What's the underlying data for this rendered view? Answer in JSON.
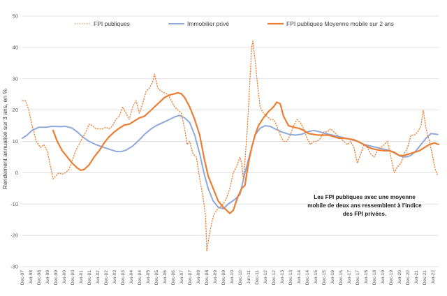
{
  "chart_data": {
    "type": "line",
    "ylabel": "Rendement annualisé sur 3 ans, en %",
    "ylim": [
      -30,
      50
    ],
    "yticks": [
      -30,
      -20,
      -10,
      0,
      10,
      20,
      30,
      40,
      50
    ],
    "grid": true,
    "legend_position": "top",
    "x_range": [
      1997.92,
      2022.75
    ],
    "xtick_labels": [
      "Dec-97",
      "Jun-98",
      "Dec-98",
      "Jun-99",
      "Dec-99",
      "Jun-00",
      "Dec-00",
      "Jun-01",
      "Dec-01",
      "Jun-02",
      "Dec-02",
      "Jun-03",
      "Dec-03",
      "Jun-04",
      "Dec-04",
      "Jun-05",
      "Dec-05",
      "Jun-06",
      "Dec-06",
      "Jun-07",
      "Dec-07",
      "Jun-08",
      "Dec-08",
      "Jun-09",
      "Dec-09",
      "Jun-10",
      "Dec-10",
      "Jun-11",
      "Dec-11",
      "Jun-12",
      "Dec-12",
      "Jun-13",
      "Dec-13",
      "Jun-14",
      "Dec-14",
      "Jun-15",
      "Dec-15",
      "Jun-16",
      "Dec-16",
      "Jun-17",
      "Dec-17",
      "Jun-18",
      "Dec-18",
      "Jun-19",
      "Dec-19",
      "Jun-20",
      "Dec-20",
      "Jun-21",
      "Dec-21",
      "Jun-22"
    ],
    "annotation": [
      "Les FPI publiques avec une moyenne",
      "mobile de deux ans ressemblent à l'indice",
      "des FPI privées."
    ],
    "series": [
      {
        "name": "FPI publiques",
        "color": "#ED7D31",
        "style": "dotted",
        "points": [
          [
            1997.92,
            23
          ],
          [
            1998.1,
            23
          ],
          [
            1998.3,
            20
          ],
          [
            1998.5,
            15
          ],
          [
            1998.75,
            10
          ],
          [
            1999.0,
            8
          ],
          [
            1999.2,
            9
          ],
          [
            1999.4,
            7
          ],
          [
            1999.6,
            2
          ],
          [
            1999.75,
            -2
          ],
          [
            1999.92,
            -1
          ],
          [
            2000.1,
            0
          ],
          [
            2000.3,
            -0.5
          ],
          [
            2000.5,
            0
          ],
          [
            2000.7,
            1
          ],
          [
            2000.9,
            4
          ],
          [
            2001.1,
            7
          ],
          [
            2001.3,
            9
          ],
          [
            2001.5,
            11
          ],
          [
            2001.7,
            13
          ],
          [
            2001.9,
            15.5
          ],
          [
            2002.1,
            15
          ],
          [
            2002.3,
            14
          ],
          [
            2002.5,
            14
          ],
          [
            2002.7,
            14
          ],
          [
            2002.9,
            14.5
          ],
          [
            2003.1,
            14
          ],
          [
            2003.3,
            15
          ],
          [
            2003.5,
            17
          ],
          [
            2003.7,
            18
          ],
          [
            2003.9,
            21
          ],
          [
            2004.1,
            19
          ],
          [
            2004.3,
            17
          ],
          [
            2004.5,
            21
          ],
          [
            2004.7,
            23
          ],
          [
            2004.9,
            19
          ],
          [
            2005.1,
            22
          ],
          [
            2005.3,
            26
          ],
          [
            2005.5,
            27
          ],
          [
            2005.7,
            29
          ],
          [
            2005.8,
            31.5
          ],
          [
            2006.0,
            27
          ],
          [
            2006.2,
            26
          ],
          [
            2006.4,
            25.5
          ],
          [
            2006.6,
            25
          ],
          [
            2006.8,
            23
          ],
          [
            2007.0,
            21
          ],
          [
            2007.2,
            20
          ],
          [
            2007.4,
            19
          ],
          [
            2007.6,
            14
          ],
          [
            2007.75,
            9
          ],
          [
            2007.9,
            10
          ],
          [
            2008.1,
            6
          ],
          [
            2008.3,
            5
          ],
          [
            2008.5,
            -2
          ],
          [
            2008.7,
            -8
          ],
          [
            2008.85,
            -14
          ],
          [
            2008.92,
            -25
          ],
          [
            2009.1,
            -19
          ],
          [
            2009.3,
            -14
          ],
          [
            2009.5,
            -12
          ],
          [
            2009.7,
            -11
          ],
          [
            2009.9,
            -10
          ],
          [
            2010.1,
            -8
          ],
          [
            2010.3,
            -5
          ],
          [
            2010.5,
            0
          ],
          [
            2010.7,
            2
          ],
          [
            2010.9,
            5
          ],
          [
            2011.0,
            3
          ],
          [
            2011.1,
            -2
          ],
          [
            2011.2,
            4
          ],
          [
            2011.35,
            15
          ],
          [
            2011.5,
            30
          ],
          [
            2011.6,
            40
          ],
          [
            2011.67,
            42
          ],
          [
            2011.8,
            36
          ],
          [
            2011.95,
            28
          ],
          [
            2012.1,
            21
          ],
          [
            2012.3,
            19
          ],
          [
            2012.5,
            18
          ],
          [
            2012.7,
            17
          ],
          [
            2012.9,
            17
          ],
          [
            2013.1,
            15
          ],
          [
            2013.3,
            12
          ],
          [
            2013.5,
            10
          ],
          [
            2013.7,
            10
          ],
          [
            2013.9,
            12
          ],
          [
            2014.1,
            15
          ],
          [
            2014.3,
            17
          ],
          [
            2014.5,
            16
          ],
          [
            2014.7,
            14
          ],
          [
            2014.9,
            11
          ],
          [
            2015.1,
            9
          ],
          [
            2015.3,
            10
          ],
          [
            2015.5,
            10
          ],
          [
            2015.7,
            11
          ],
          [
            2015.9,
            13
          ],
          [
            2016.1,
            13
          ],
          [
            2016.3,
            14
          ],
          [
            2016.5,
            13
          ],
          [
            2016.7,
            12
          ],
          [
            2016.9,
            11
          ],
          [
            2017.1,
            10
          ],
          [
            2017.3,
            9
          ],
          [
            2017.5,
            10
          ],
          [
            2017.7,
            8
          ],
          [
            2017.9,
            3
          ],
          [
            2018.1,
            6
          ],
          [
            2018.3,
            9
          ],
          [
            2018.5,
            8
          ],
          [
            2018.7,
            6
          ],
          [
            2018.9,
            5
          ],
          [
            2019.1,
            7
          ],
          [
            2019.3,
            8
          ],
          [
            2019.5,
            9
          ],
          [
            2019.7,
            10
          ],
          [
            2019.9,
            5
          ],
          [
            2020.1,
            0
          ],
          [
            2020.3,
            2
          ],
          [
            2020.5,
            3
          ],
          [
            2020.7,
            6
          ],
          [
            2020.9,
            8
          ],
          [
            2021.1,
            12
          ],
          [
            2021.3,
            12
          ],
          [
            2021.5,
            13
          ],
          [
            2021.7,
            15
          ],
          [
            2021.83,
            20
          ],
          [
            2022.0,
            14
          ],
          [
            2022.2,
            10
          ],
          [
            2022.4,
            5
          ],
          [
            2022.55,
            1
          ],
          [
            2022.7,
            -1
          ]
        ]
      },
      {
        "name": "Immobilier privé",
        "color": "#8EA9DB",
        "style": "solid",
        "points": [
          [
            1997.92,
            11
          ],
          [
            1998.2,
            12
          ],
          [
            1998.5,
            13.5
          ],
          [
            1998.9,
            14.5
          ],
          [
            1999.3,
            14.5
          ],
          [
            1999.7,
            14.8
          ],
          [
            2000.2,
            14.7
          ],
          [
            2000.5,
            14.8
          ],
          [
            2000.9,
            14.2
          ],
          [
            2001.2,
            13
          ],
          [
            2001.5,
            11.5
          ],
          [
            2001.9,
            10
          ],
          [
            2002.3,
            9
          ],
          [
            2002.7,
            8.2
          ],
          [
            2003.1,
            7.5
          ],
          [
            2003.5,
            6.8
          ],
          [
            2003.8,
            6.7
          ],
          [
            2004.1,
            7.2
          ],
          [
            2004.5,
            8.5
          ],
          [
            2004.9,
            10.5
          ],
          [
            2005.2,
            12.2
          ],
          [
            2005.6,
            14
          ],
          [
            2005.9,
            15
          ],
          [
            2006.3,
            16
          ],
          [
            2006.7,
            17
          ],
          [
            2007.0,
            17.8
          ],
          [
            2007.3,
            18.3
          ],
          [
            2007.6,
            17.5
          ],
          [
            2007.9,
            16
          ],
          [
            2008.2,
            12
          ],
          [
            2008.5,
            6
          ],
          [
            2008.75,
            0
          ],
          [
            2009.0,
            -5
          ],
          [
            2009.3,
            -9
          ],
          [
            2009.6,
            -11
          ],
          [
            2009.9,
            -11.5
          ],
          [
            2010.2,
            -10
          ],
          [
            2010.6,
            -8.5
          ],
          [
            2010.9,
            -7
          ],
          [
            2011.2,
            0
          ],
          [
            2011.5,
            6
          ],
          [
            2011.8,
            12
          ],
          [
            2012.1,
            14.2
          ],
          [
            2012.4,
            15
          ],
          [
            2012.7,
            14.8
          ],
          [
            2013.0,
            14
          ],
          [
            2013.4,
            13
          ],
          [
            2013.8,
            12.3
          ],
          [
            2014.2,
            12
          ],
          [
            2014.6,
            12.3
          ],
          [
            2014.9,
            13
          ],
          [
            2015.3,
            13.5
          ],
          [
            2015.7,
            13
          ],
          [
            2016.0,
            12.5
          ],
          [
            2016.4,
            12
          ],
          [
            2016.8,
            11.5
          ],
          [
            2017.2,
            11
          ],
          [
            2017.6,
            10.5
          ],
          [
            2017.9,
            10
          ],
          [
            2018.3,
            9
          ],
          [
            2018.7,
            8.5
          ],
          [
            2019.1,
            8
          ],
          [
            2019.5,
            7.5
          ],
          [
            2019.9,
            7
          ],
          [
            2020.2,
            6
          ],
          [
            2020.5,
            5.2
          ],
          [
            2020.8,
            5
          ],
          [
            2021.1,
            5.5
          ],
          [
            2021.4,
            7
          ],
          [
            2021.7,
            9
          ],
          [
            2022.0,
            11
          ],
          [
            2022.3,
            12.5
          ],
          [
            2022.7,
            12.2
          ]
        ]
      },
      {
        "name": "FPI publiques Moyenne mobile sur 2 ans",
        "color": "#ED7D31",
        "style": "solid",
        "points": [
          [
            1999.75,
            13.5
          ],
          [
            2000.0,
            10
          ],
          [
            2000.3,
            7
          ],
          [
            2000.6,
            5
          ],
          [
            2000.9,
            3
          ],
          [
            2001.2,
            1.5
          ],
          [
            2001.4,
            0.8
          ],
          [
            2001.6,
            1
          ],
          [
            2001.9,
            2.5
          ],
          [
            2002.2,
            5
          ],
          [
            2002.5,
            7
          ],
          [
            2002.8,
            9.5
          ],
          [
            2003.1,
            11.5
          ],
          [
            2003.4,
            13
          ],
          [
            2003.7,
            14.2
          ],
          [
            2004.0,
            15.2
          ],
          [
            2004.3,
            15.5
          ],
          [
            2004.6,
            16.5
          ],
          [
            2004.9,
            17.5
          ],
          [
            2005.2,
            18
          ],
          [
            2005.5,
            19.5
          ],
          [
            2005.8,
            21
          ],
          [
            2006.1,
            22.5
          ],
          [
            2006.4,
            24
          ],
          [
            2006.7,
            24.8
          ],
          [
            2007.0,
            25.2
          ],
          [
            2007.2,
            25.5
          ],
          [
            2007.4,
            25.2
          ],
          [
            2007.6,
            24
          ],
          [
            2007.9,
            21
          ],
          [
            2008.2,
            17
          ],
          [
            2008.5,
            12
          ],
          [
            2008.75,
            5
          ],
          [
            2009.0,
            -1
          ],
          [
            2009.3,
            -5
          ],
          [
            2009.6,
            -9
          ],
          [
            2009.9,
            -11
          ],
          [
            2010.1,
            -12
          ],
          [
            2010.3,
            -13
          ],
          [
            2010.5,
            -12
          ],
          [
            2010.75,
            -8
          ],
          [
            2011.0,
            -5
          ],
          [
            2011.2,
            -4
          ],
          [
            2011.4,
            3
          ],
          [
            2011.6,
            8
          ],
          [
            2011.8,
            12
          ],
          [
            2012.0,
            15
          ],
          [
            2012.3,
            17.5
          ],
          [
            2012.6,
            19.5
          ],
          [
            2012.9,
            21
          ],
          [
            2013.1,
            22.5
          ],
          [
            2013.3,
            22
          ],
          [
            2013.5,
            18
          ],
          [
            2013.8,
            15
          ],
          [
            2014.1,
            14.5
          ],
          [
            2014.4,
            14.2
          ],
          [
            2014.7,
            13.5
          ],
          [
            2015.0,
            12.5
          ],
          [
            2015.3,
            12.2
          ],
          [
            2015.6,
            12
          ],
          [
            2015.9,
            12
          ],
          [
            2016.2,
            12
          ],
          [
            2016.5,
            11.5
          ],
          [
            2016.8,
            11
          ],
          [
            2017.1,
            11
          ],
          [
            2017.4,
            10.8
          ],
          [
            2017.7,
            10.5
          ],
          [
            2018.0,
            9.8
          ],
          [
            2018.3,
            9
          ],
          [
            2018.6,
            8
          ],
          [
            2018.9,
            7.5
          ],
          [
            2019.2,
            7.2
          ],
          [
            2019.5,
            7
          ],
          [
            2019.8,
            7
          ],
          [
            2020.1,
            6.5
          ],
          [
            2020.4,
            5.5
          ],
          [
            2020.7,
            5.5
          ],
          [
            2021.0,
            6
          ],
          [
            2021.3,
            6.5
          ],
          [
            2021.6,
            7
          ],
          [
            2021.9,
            8
          ],
          [
            2022.2,
            9
          ],
          [
            2022.5,
            9.5
          ],
          [
            2022.75,
            9
          ]
        ]
      }
    ]
  }
}
